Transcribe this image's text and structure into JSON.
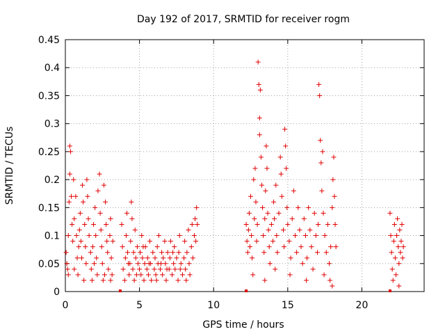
{
  "chart_data": {
    "type": "scatter",
    "title": "Day 192 of 2017, SRMTID for receiver rogm",
    "xlabel": "GPS time / hours",
    "ylabel": "SRMTID / TECUs",
    "xlim": [
      0,
      24.2
    ],
    "ylim": [
      0,
      0.45
    ],
    "xticks": [
      0,
      5,
      10,
      15,
      20
    ],
    "yticks": [
      0,
      0.05,
      0.1,
      0.15,
      0.2,
      0.25,
      0.3,
      0.35,
      0.4,
      0.45
    ],
    "grid": true,
    "marker": "+",
    "color": "#e00000",
    "series": [
      {
        "name": "SRMTID",
        "points": [
          [
            0.05,
            0.07
          ],
          [
            0.1,
            0.05
          ],
          [
            0.15,
            0.04
          ],
          [
            0.2,
            0.1
          ],
          [
            0.25,
            0.16
          ],
          [
            0.3,
            0.26
          ],
          [
            0.3,
            0.21
          ],
          [
            0.35,
            0.25
          ],
          [
            0.4,
            0.17
          ],
          [
            0.45,
            0.12
          ],
          [
            0.5,
            0.09
          ],
          [
            0.55,
            0.2
          ],
          [
            0.6,
            0.13
          ],
          [
            0.7,
            0.17
          ],
          [
            0.75,
            0.1
          ],
          [
            0.8,
            0.06
          ],
          [
            0.85,
            0.03
          ],
          [
            0.9,
            0.08
          ],
          [
            0.95,
            0.11
          ],
          [
            1.0,
            0.14
          ],
          [
            1.05,
            0.09
          ],
          [
            1.1,
            0.06
          ],
          [
            1.15,
            0.19
          ],
          [
            1.2,
            0.16
          ],
          [
            1.3,
            0.12
          ],
          [
            1.35,
            0.08
          ],
          [
            1.4,
            0.05
          ],
          [
            1.45,
            0.2
          ],
          [
            1.5,
            0.17
          ],
          [
            1.55,
            0.13
          ],
          [
            1.6,
            0.1
          ],
          [
            1.7,
            0.07
          ],
          [
            1.75,
            0.04
          ],
          [
            1.8,
            0.02
          ],
          [
            1.85,
            0.08
          ],
          [
            1.9,
            0.12
          ],
          [
            2.0,
            0.15
          ],
          [
            2.05,
            0.1
          ],
          [
            2.1,
            0.06
          ],
          [
            2.15,
            0.03
          ],
          [
            2.2,
            0.18
          ],
          [
            2.3,
            0.21
          ],
          [
            2.35,
            0.14
          ],
          [
            2.4,
            0.11
          ],
          [
            2.45,
            0.08
          ],
          [
            2.5,
            0.05
          ],
          [
            2.55,
            0.02
          ],
          [
            2.6,
            0.19
          ],
          [
            2.7,
            0.16
          ],
          [
            2.75,
            0.12
          ],
          [
            2.8,
            0.09
          ],
          [
            2.85,
            0.07
          ],
          [
            2.9,
            0.04
          ],
          [
            3.0,
            0.1
          ],
          [
            3.05,
            0.13
          ],
          [
            3.1,
            0.06
          ],
          [
            3.15,
            0.03
          ],
          [
            3.2,
            0.09
          ],
          [
            0.2,
            0.03
          ],
          [
            0.6,
            0.04
          ],
          [
            1.25,
            0.02
          ],
          [
            1.95,
            0.05
          ],
          [
            2.65,
            0.03
          ],
          [
            3.05,
            0.02
          ],
          [
            3.8,
            0.12
          ],
          [
            3.85,
            0.08
          ],
          [
            3.9,
            0.04
          ],
          [
            4.0,
            0.02
          ],
          [
            4.05,
            0.06
          ],
          [
            4.1,
            0.1
          ],
          [
            4.15,
            0.14
          ],
          [
            4.2,
            0.07
          ],
          [
            4.3,
            0.03
          ],
          [
            4.35,
            0.05
          ],
          [
            4.4,
            0.09
          ],
          [
            4.45,
            0.16
          ],
          [
            4.5,
            0.13
          ],
          [
            4.55,
            0.04
          ],
          [
            4.6,
            0.07
          ],
          [
            4.7,
            0.11
          ],
          [
            4.75,
            0.06
          ],
          [
            4.8,
            0.03
          ],
          [
            4.85,
            0.08
          ],
          [
            4.9,
            0.05
          ],
          [
            5.0,
            0.04
          ],
          [
            5.05,
            0.07
          ],
          [
            5.1,
            0.03
          ],
          [
            5.15,
            0.1
          ],
          [
            5.2,
            0.06
          ],
          [
            5.3,
            0.02
          ],
          [
            5.35,
            0.05
          ],
          [
            5.4,
            0.08
          ],
          [
            5.5,
            0.04
          ],
          [
            5.55,
            0.06
          ],
          [
            5.6,
            0.03
          ],
          [
            5.7,
            0.09
          ],
          [
            5.75,
            0.05
          ],
          [
            5.8,
            0.02
          ],
          [
            5.9,
            0.07
          ],
          [
            6.0,
            0.04
          ],
          [
            6.05,
            0.06
          ],
          [
            6.1,
            0.03
          ],
          [
            6.2,
            0.08
          ],
          [
            6.25,
            0.05
          ],
          [
            6.3,
            0.1
          ],
          [
            6.4,
            0.04
          ],
          [
            6.5,
            0.07
          ],
          [
            6.55,
            0.03
          ],
          [
            6.6,
            0.06
          ],
          [
            6.7,
            0.09
          ],
          [
            6.75,
            0.05
          ],
          [
            6.8,
            0.02
          ],
          [
            6.9,
            0.07
          ],
          [
            7.0,
            0.04
          ],
          [
            7.05,
            0.06
          ],
          [
            7.1,
            0.09
          ],
          [
            7.2,
            0.03
          ],
          [
            7.3,
            0.05
          ],
          [
            7.35,
            0.08
          ],
          [
            7.4,
            0.04
          ],
          [
            7.5,
            0.06
          ],
          [
            7.6,
            0.02
          ],
          [
            7.65,
            0.07
          ],
          [
            7.7,
            0.1
          ],
          [
            7.8,
            0.05
          ],
          [
            7.9,
            0.03
          ],
          [
            8.0,
            0.06
          ],
          [
            8.05,
            0.09
          ],
          [
            8.1,
            0.04
          ],
          [
            8.2,
            0.07
          ],
          [
            8.3,
            0.11
          ],
          [
            8.35,
            0.05
          ],
          [
            8.4,
            0.03
          ],
          [
            8.5,
            0.08
          ],
          [
            8.55,
            0.12
          ],
          [
            8.6,
            0.06
          ],
          [
            8.7,
            0.1
          ],
          [
            8.75,
            0.13
          ],
          [
            8.8,
            0.09
          ],
          [
            8.85,
            0.15
          ],
          [
            8.9,
            0.12
          ],
          [
            4.25,
            0.05
          ],
          [
            4.65,
            0.02
          ],
          [
            5.25,
            0.08
          ],
          [
            5.65,
            0.05
          ],
          [
            6.15,
            0.02
          ],
          [
            6.45,
            0.05
          ],
          [
            6.85,
            0.04
          ],
          [
            7.25,
            0.07
          ],
          [
            7.75,
            0.04
          ],
          [
            8.15,
            0.02
          ],
          [
            12.2,
            0.12
          ],
          [
            12.25,
            0.09
          ],
          [
            12.3,
            0.07
          ],
          [
            12.35,
            0.11
          ],
          [
            12.4,
            0.14
          ],
          [
            12.45,
            0.08
          ],
          [
            12.5,
            0.17
          ],
          [
            12.55,
            0.1
          ],
          [
            12.6,
            0.06
          ],
          [
            12.7,
            0.2
          ],
          [
            12.75,
            0.13
          ],
          [
            12.8,
            0.22
          ],
          [
            12.85,
            0.16
          ],
          [
            12.9,
            0.09
          ],
          [
            12.95,
            0.12
          ],
          [
            13.0,
            0.41
          ],
          [
            13.05,
            0.37
          ],
          [
            13.1,
            0.31
          ],
          [
            13.1,
            0.28
          ],
          [
            13.15,
            0.36
          ],
          [
            13.2,
            0.24
          ],
          [
            13.25,
            0.19
          ],
          [
            13.3,
            0.15
          ],
          [
            13.35,
            0.1
          ],
          [
            13.4,
            0.07
          ],
          [
            13.45,
            0.13
          ],
          [
            13.5,
            0.18
          ],
          [
            13.55,
            0.26
          ],
          [
            13.6,
            0.22
          ],
          [
            13.65,
            0.14
          ],
          [
            13.7,
            0.11
          ],
          [
            13.75,
            0.08
          ],
          [
            13.8,
            0.05
          ],
          [
            13.9,
            0.12
          ],
          [
            14.0,
            0.09
          ],
          [
            14.05,
            0.16
          ],
          [
            14.1,
            0.13
          ],
          [
            14.2,
            0.19
          ],
          [
            14.25,
            0.1
          ],
          [
            14.3,
            0.07
          ],
          [
            14.4,
            0.14
          ],
          [
            14.5,
            0.24
          ],
          [
            14.55,
            0.21
          ],
          [
            14.6,
            0.17
          ],
          [
            14.7,
            0.11
          ],
          [
            14.75,
            0.08
          ],
          [
            14.8,
            0.29
          ],
          [
            14.85,
            0.26
          ],
          [
            14.9,
            0.22
          ],
          [
            14.95,
            0.15
          ],
          [
            15.0,
            0.12
          ],
          [
            15.1,
            0.09
          ],
          [
            15.2,
            0.06
          ],
          [
            15.3,
            0.13
          ],
          [
            15.4,
            0.18
          ],
          [
            15.5,
            0.1
          ],
          [
            15.6,
            0.07
          ],
          [
            15.7,
            0.15
          ],
          [
            15.8,
            0.11
          ],
          [
            15.9,
            0.08
          ],
          [
            16.0,
            0.05
          ],
          [
            16.1,
            0.13
          ],
          [
            16.2,
            0.1
          ],
          [
            16.3,
            0.06
          ],
          [
            16.4,
            0.15
          ],
          [
            16.5,
            0.11
          ],
          [
            16.6,
            0.08
          ],
          [
            16.7,
            0.04
          ],
          [
            16.8,
            0.14
          ],
          [
            16.9,
            0.1
          ],
          [
            17.0,
            0.07
          ],
          [
            17.05,
            0.12
          ],
          [
            17.1,
            0.37
          ],
          [
            17.15,
            0.35
          ],
          [
            17.2,
            0.27
          ],
          [
            17.25,
            0.23
          ],
          [
            17.3,
            0.18
          ],
          [
            17.35,
            0.25
          ],
          [
            17.4,
            0.14
          ],
          [
            17.5,
            0.1
          ],
          [
            17.6,
            0.07
          ],
          [
            17.7,
            0.12
          ],
          [
            17.8,
            0.05
          ],
          [
            17.85,
            0.02
          ],
          [
            17.9,
            0.08
          ],
          [
            18.0,
            0.15
          ],
          [
            18.05,
            0.2
          ],
          [
            18.1,
            0.24
          ],
          [
            18.15,
            0.17
          ],
          [
            18.2,
            0.12
          ],
          [
            18.25,
            0.08
          ],
          [
            12.65,
            0.03
          ],
          [
            13.45,
            0.02
          ],
          [
            14.15,
            0.04
          ],
          [
            15.15,
            0.03
          ],
          [
            16.25,
            0.02
          ],
          [
            17.45,
            0.03
          ],
          [
            18.0,
            0.01
          ],
          [
            21.9,
            0.14
          ],
          [
            21.95,
            0.1
          ],
          [
            22.0,
            0.07
          ],
          [
            22.05,
            0.04
          ],
          [
            22.1,
            0.02
          ],
          [
            22.15,
            0.09
          ],
          [
            22.2,
            0.12
          ],
          [
            22.25,
            0.06
          ],
          [
            22.3,
            0.03
          ],
          [
            22.35,
            0.1
          ],
          [
            22.4,
            0.13
          ],
          [
            22.45,
            0.08
          ],
          [
            22.5,
            0.05
          ],
          [
            22.55,
            0.11
          ],
          [
            22.6,
            0.07
          ],
          [
            22.65,
            0.09
          ],
          [
            22.7,
            0.12
          ],
          [
            22.75,
            0.06
          ],
          [
            22.8,
            0.08
          ],
          [
            22.5,
            0.01
          ]
        ]
      }
    ],
    "baseline_markers": [
      3.7,
      12.2,
      21.9
    ]
  }
}
